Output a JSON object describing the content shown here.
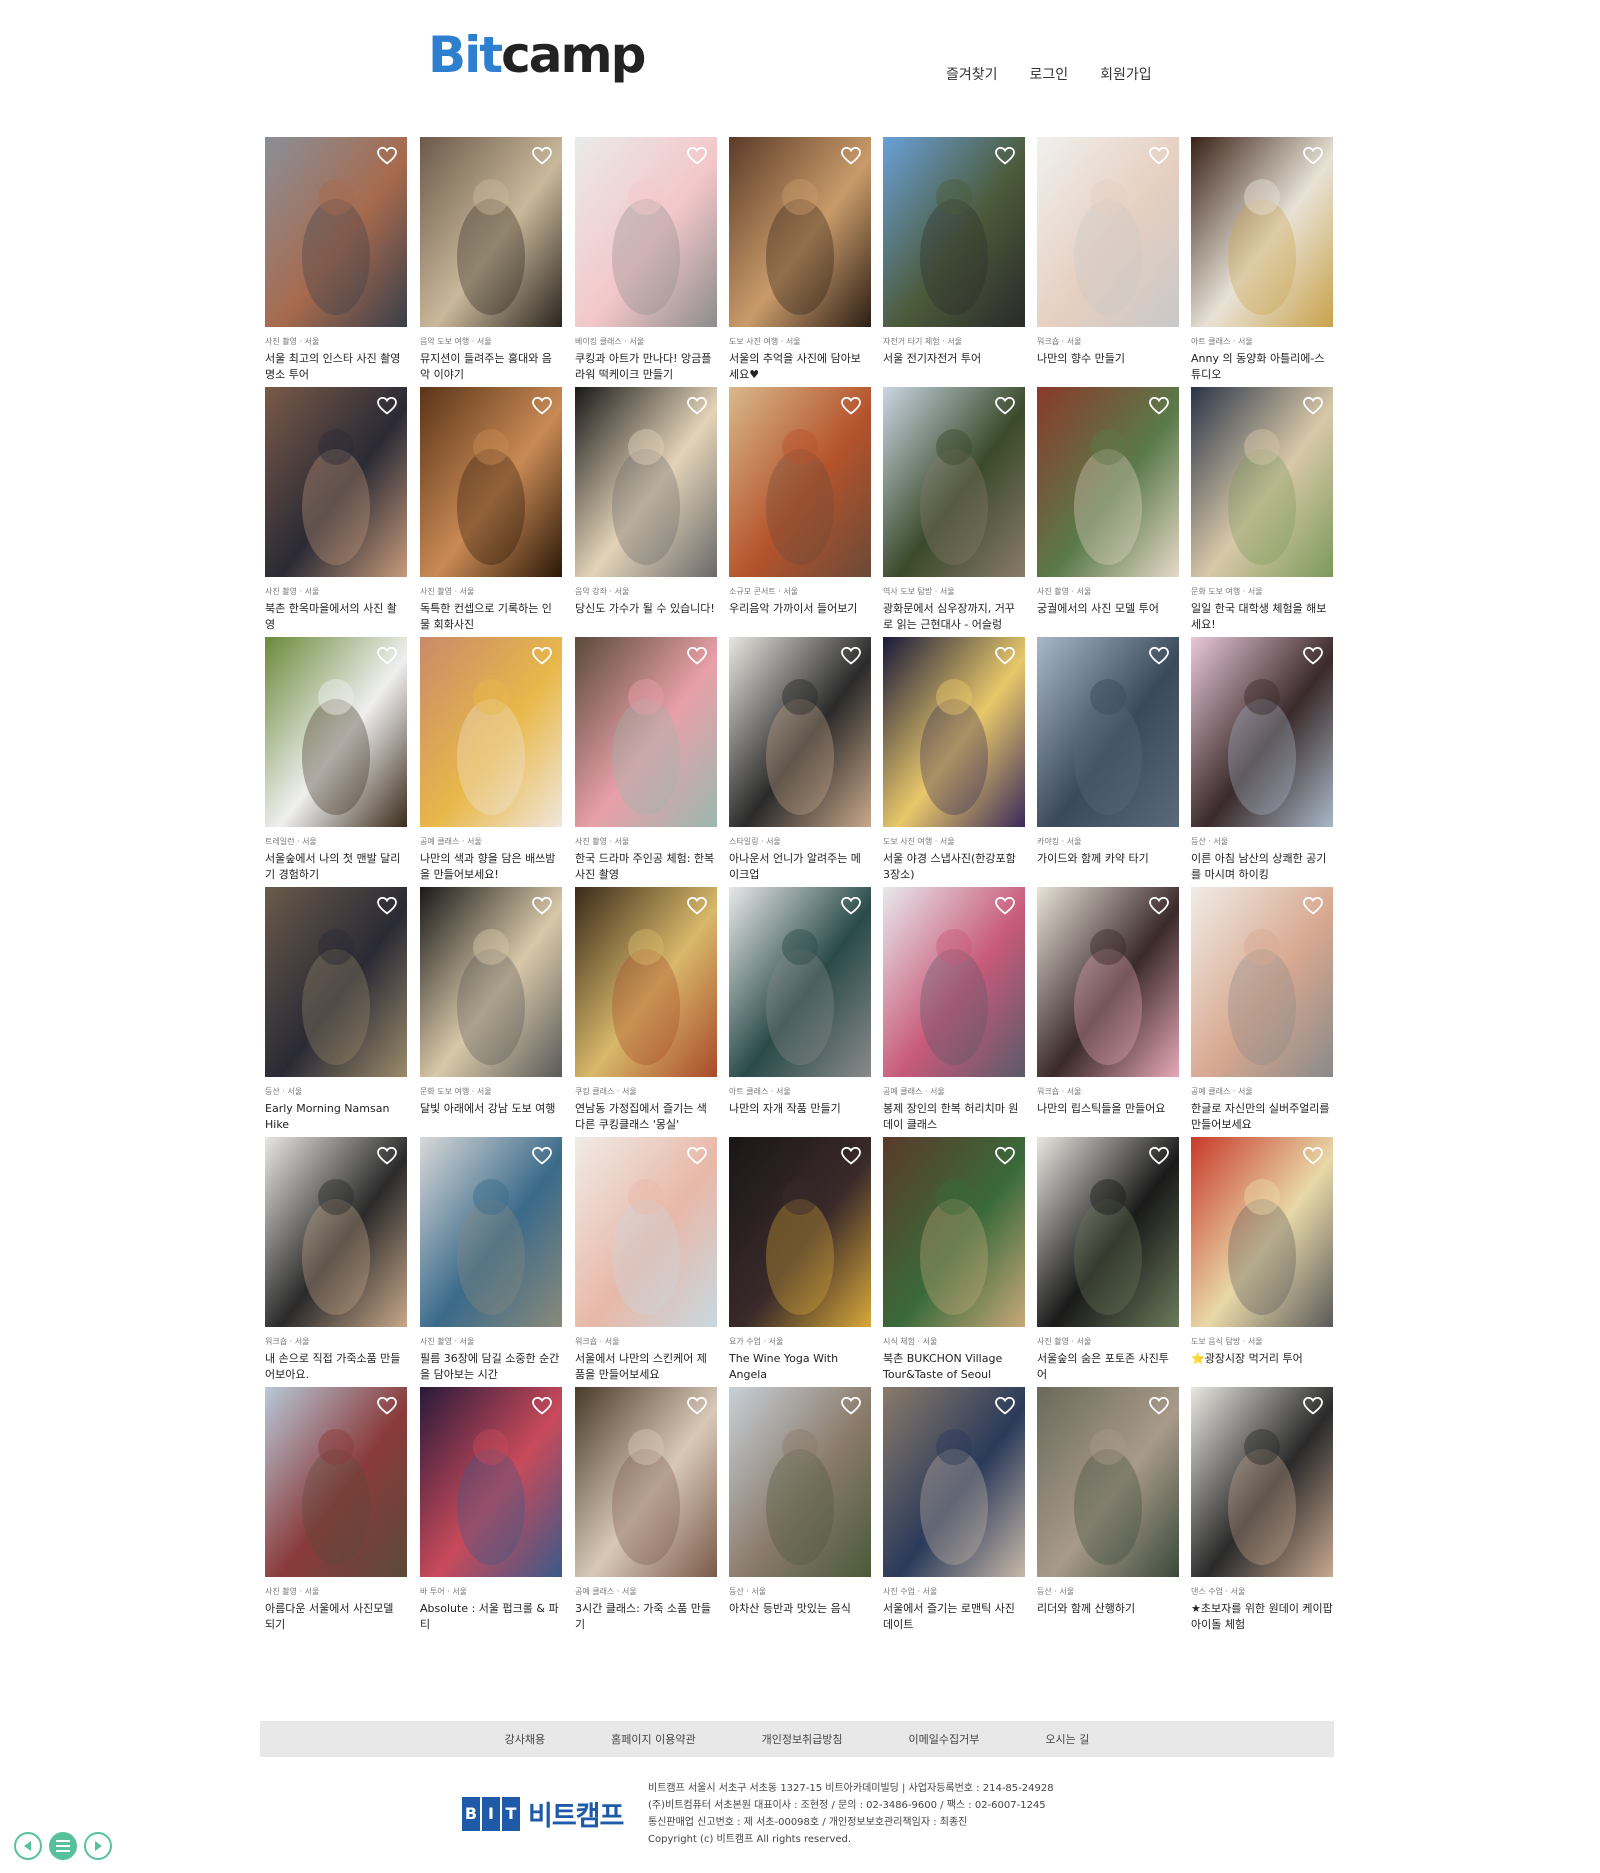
{
  "header": {
    "logo_bit": "Bit",
    "logo_camp": "camp",
    "nav": [
      "즐겨찾기",
      "로그인",
      "회원가입"
    ]
  },
  "rows": [
    [
      {
        "cat": "사진 촬영 · 서울",
        "title": "서울 최고의 인스타 사진 촬영 명소 투어",
        "colors": [
          "#8a8f99",
          "#a76a4d",
          "#3a3f4a"
        ]
      },
      {
        "cat": "음악 도보 여행 · 서울",
        "title": "뮤지션이 들려주는 홍대와 음악 이야기",
        "colors": [
          "#6b5a4a",
          "#c9b89a",
          "#2b2520"
        ]
      },
      {
        "cat": "베이킹 클래스 · 서울",
        "title": "쿠킹과 아트가 만나다! 앙금플라워 떡케이크 만들기",
        "colors": [
          "#eaeaea",
          "#f3c7c9",
          "#8c8c8c"
        ]
      },
      {
        "cat": "도보 사진 여행 · 서울",
        "title": "서울의 추억을 사진에 담아보세요♥",
        "colors": [
          "#5b3b28",
          "#c99b6a",
          "#2c1e15"
        ]
      },
      {
        "cat": "자전거 타기 체험 · 서울",
        "title": "서울 전기자전거 투어",
        "colors": [
          "#6aa0d8",
          "#4b5a3a",
          "#2a2a2a"
        ]
      },
      {
        "cat": "워크숍 · 서울",
        "title": "나만의 향수 만들기",
        "colors": [
          "#f0f0ee",
          "#e6cfc0",
          "#c8c8c8"
        ]
      },
      {
        "cat": "아트 클래스 · 서울",
        "title": "Anny 의 동양화 아틀리에-스튜디오",
        "colors": [
          "#3a2218",
          "#e8e2d6",
          "#c9a24a"
        ]
      }
    ],
    [
      {
        "cat": "사진 촬영 · 서울",
        "title": "북촌 한옥마을에서의 사진 촬영",
        "colors": [
          "#7a5a48",
          "#2a2a35",
          "#c79a7a"
        ]
      },
      {
        "cat": "사진 촬영 · 서울",
        "title": "독특한 컨셉으로 기록하는 인물 회화사진",
        "colors": [
          "#5a3418",
          "#c98a55",
          "#2a1808"
        ]
      },
      {
        "cat": "음악 강좌 · 서울",
        "title": "당신도 가수가 될 수 있습니다!",
        "colors": [
          "#1a1a1a",
          "#e3d3b8",
          "#6a6a6a"
        ]
      },
      {
        "cat": "소규모 콘서트 · 서울",
        "title": "우리음악 가까이서 들어보기",
        "colors": [
          "#d8b98a",
          "#b5532c",
          "#6a4a38"
        ]
      },
      {
        "cat": "역사 도보 탐방 · 서울",
        "title": "광화문에서 심우장까지, 거꾸로 읽는 근현대사 - 어슬렁",
        "colors": [
          "#c9d6e3",
          "#3a4a2a",
          "#8a7a6a"
        ]
      },
      {
        "cat": "사진 촬영 · 서울",
        "title": "궁궐에서의 사진 모델 투어",
        "colors": [
          "#8a3a2a",
          "#5a7a4a",
          "#e6d8c8"
        ]
      },
      {
        "cat": "문화 도보 여행 · 서울",
        "title": "일일 한국 대학생 체험을 해보세요!",
        "colors": [
          "#2a3448",
          "#d8c8a8",
          "#7a9a5a"
        ]
      }
    ],
    [
      {
        "cat": "트레일런 · 서울",
        "title": "서울숲에서 나의 첫 맨발 달리기 경험하기",
        "colors": [
          "#6a8a3a",
          "#efefef",
          "#3a2a1a"
        ]
      },
      {
        "cat": "공예 클래스 · 서울",
        "title": "나만의 색과 향을 담은 배쓰밤을 만들어보세요!",
        "colors": [
          "#c98a6a",
          "#e8b84a",
          "#f0e6da"
        ]
      },
      {
        "cat": "사진 촬영 · 서울",
        "title": "한국 드라마 주인공 체험: 한복 사진 촬영",
        "colors": [
          "#5a4a3a",
          "#e8a0a8",
          "#9ab8b0"
        ]
      },
      {
        "cat": "스타일링 · 서울",
        "title": "아나운서 언니가 알려주는 메이크업",
        "colors": [
          "#e8e6e0",
          "#2a2a2a",
          "#c9a88a"
        ]
      },
      {
        "cat": "도보 사진 여행 · 서울",
        "title": "서울 야경 스냅사진(한강포함 3장소)",
        "colors": [
          "#1a1a3a",
          "#e8c86a",
          "#3a2a5a"
        ]
      },
      {
        "cat": "카야킹 · 서울",
        "title": "가이드와 함께 카약 타기",
        "colors": [
          "#a8b8c8",
          "#3a4a5a",
          "#5a6a7a"
        ]
      },
      {
        "cat": "등산 · 서울",
        "title": "이른 아침 남산의 상쾌한 공기를 마시며 하이킹",
        "colors": [
          "#e8c8d8",
          "#3a2a2a",
          "#a8b8c8"
        ]
      }
    ],
    [
      {
        "cat": "등산 · 서울",
        "title": "Early Morning Namsan Hike",
        "colors": [
          "#6a5a4a",
          "#2a2a35",
          "#9a8a6a"
        ]
      },
      {
        "cat": "문화 도보 여행 · 서울",
        "title": "달빛 아래에서 강남 도보 여행",
        "colors": [
          "#1a1a1a",
          "#d8c8a8",
          "#5a5a5a"
        ]
      },
      {
        "cat": "쿠킹 클래스 · 서울",
        "title": "연남동 가정집에서 즐기는 색다른 쿠킹클래스 '몽실'",
        "colors": [
          "#3a2a1a",
          "#d8b86a",
          "#a84a2a"
        ]
      },
      {
        "cat": "아트 클래스 · 서울",
        "title": "나만의 자개 작품 만들기",
        "colors": [
          "#e8e8e8",
          "#2a4a4a",
          "#8a8a8a"
        ]
      },
      {
        "cat": "공예 클래스 · 서울",
        "title": "봉제 장인의 한복 허리치마 원데이 클래스",
        "colors": [
          "#e8e8ec",
          "#c85a7a",
          "#5a5a6a"
        ]
      },
      {
        "cat": "워크숍 · 서울",
        "title": "나만의 립스틱들을 만들어요",
        "colors": [
          "#e8e2d8",
          "#3a2a2a",
          "#e8a8b8"
        ]
      },
      {
        "cat": "공예 클래스 · 서울",
        "title": "한글로 자신만의 실버주얼리를 만들어보세요",
        "colors": [
          "#f0ece6",
          "#d8a890",
          "#8a8a8a"
        ]
      }
    ],
    [
      {
        "cat": "워크숍 · 서울",
        "title": "내 손으로 직접 가죽소품 만들어보아요.",
        "colors": [
          "#e8e6e2",
          "#2a2a2a",
          "#c8a88a"
        ]
      },
      {
        "cat": "사진 촬영 · 서울",
        "title": "필름 36장에 담길 소중한 순간을 담아보는 시간",
        "colors": [
          "#d8d8d8",
          "#3a6a8a",
          "#8a8a7a"
        ]
      },
      {
        "cat": "워크숍 · 서울",
        "title": "서울에서 나만의 스킨케어 제품을 만들어보세요",
        "colors": [
          "#f0ebe6",
          "#e8b8a8",
          "#c8d8e0"
        ]
      },
      {
        "cat": "요가 수업 · 서울",
        "title": "The Wine Yoga With Angela",
        "colors": [
          "#1a1616",
          "#3a2a2a",
          "#d8a83a"
        ]
      },
      {
        "cat": "시식 체험 · 서울",
        "title": "북촌 BUKCHON Village Tour&Taste of Seoul",
        "colors": [
          "#5a3a2a",
          "#3a6a3a",
          "#c8a87a"
        ]
      },
      {
        "cat": "사진 촬영 · 서울",
        "title": "서울숲의 숨은 포토존 사진투어",
        "colors": [
          "#e8e6e0",
          "#1a1a1a",
          "#6a7a5a"
        ]
      },
      {
        "cat": "도보 음식 탐방 · 서울",
        "title": "⭐광장시장 먹거리 투어",
        "colors": [
          "#c83a2a",
          "#e8d8a8",
          "#5a5a5a"
        ]
      }
    ],
    [
      {
        "cat": "사진 촬영 · 서울",
        "title": "아름다운 서울에서 사진모델 되기",
        "colors": [
          "#b8c8d8",
          "#8a3a3a",
          "#5a4a3a"
        ]
      },
      {
        "cat": "바 투어 · 서울",
        "title": "Absolute : 서울 펍크롤 & 파티",
        "colors": [
          "#2a1a3a",
          "#c84a5a",
          "#3a5a8a"
        ]
      },
      {
        "cat": "공예 클래스 · 서울",
        "title": "3시간 클래스: 가죽 소품 만들기",
        "colors": [
          "#4a3a2a",
          "#d8c8b8",
          "#7a5a4a"
        ]
      },
      {
        "cat": "등산 · 서울",
        "title": "아차산 등반과 맛있는 음식",
        "colors": [
          "#c8d0d8",
          "#8a7a6a",
          "#4a5a3a"
        ]
      },
      {
        "cat": "사진 수업 · 서울",
        "title": "서울에서 즐기는 로맨틱 사진 데이트",
        "colors": [
          "#8a7a6a",
          "#2a3a5a",
          "#c8b8a8"
        ]
      },
      {
        "cat": "등산 · 서울",
        "title": "리더와 함께 산행하기",
        "colors": [
          "#6a6a5a",
          "#a89a8a",
          "#3a4a3a"
        ]
      },
      {
        "cat": "댄스 수업 · 서울",
        "title": "★초보자를 위한 원데이 케이팝 아이돌 체험",
        "colors": [
          "#e8e6e0",
          "#2a2a2a",
          "#c8a890"
        ]
      }
    ]
  ],
  "footer": {
    "links": [
      "강사채용",
      "홈페이지 이용약관",
      "개인정보취급방침",
      "이메일수집거부",
      "오시는 길"
    ],
    "logo_letters": [
      "B",
      "I",
      "T"
    ],
    "logo_name": "비트캠프",
    "info": [
      "비트캠프 서울시 서초구 서초동 1327-15 비트아카데미빌딩 | 사업자등록번호 : 214-85-24928",
      "(주)비트컴퓨터 서초본원 대표이사 : 조현정 / 문의 : 02-3486-9600 / 팩스 : 02-6007-1245",
      "통신판매업 신고번호 : 제 서초-00098호 / 개인정보보호관리책임자 : 최종진",
      "Copyright (c) 비트캠프 All rights reserved."
    ]
  },
  "icons": {
    "heart": "heart-icon",
    "prev": "arrow-left-icon",
    "menu": "menu-icon",
    "next": "arrow-right-icon"
  },
  "accent": "#57c29a"
}
